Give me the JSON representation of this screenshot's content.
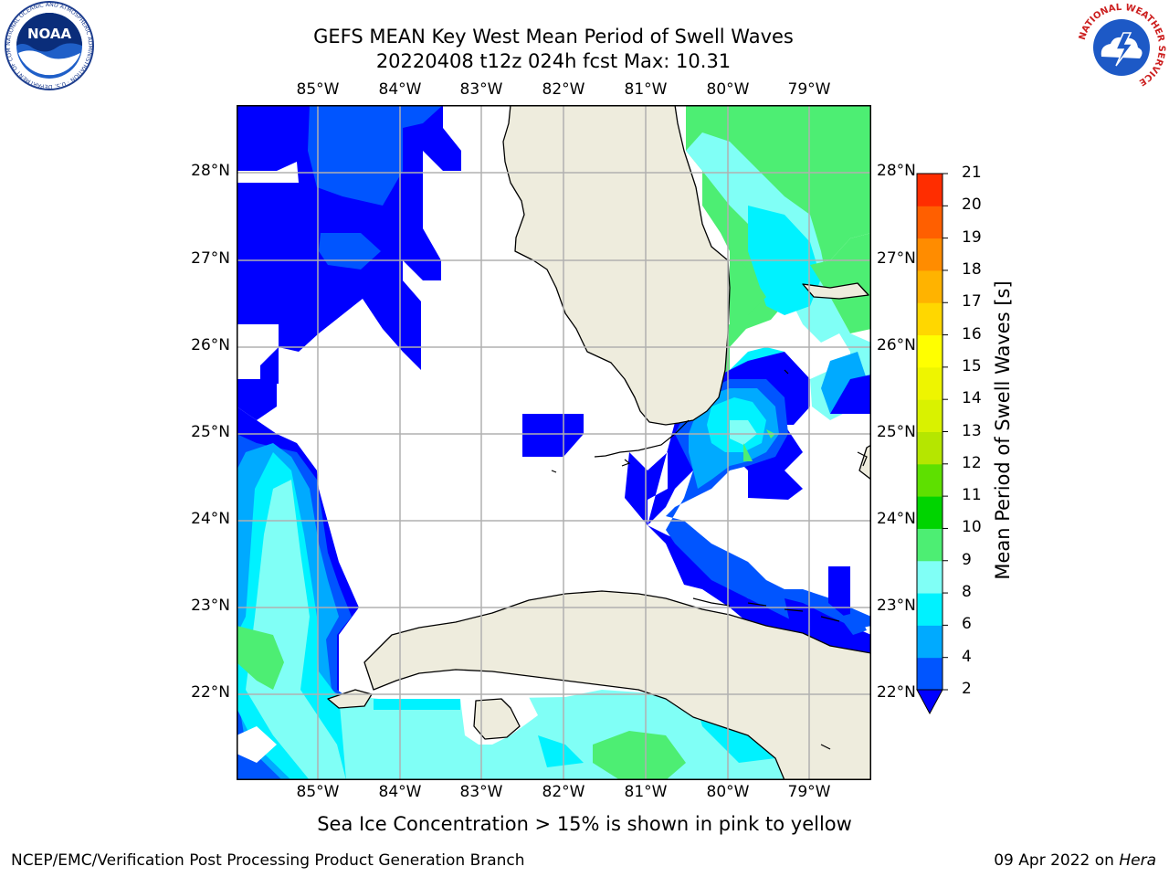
{
  "title": {
    "line1": "GEFS MEAN Key West Mean Period of Swell Waves",
    "line2": "20220408 t12z 024h fcst   Max: 10.31"
  },
  "map": {
    "lon_labels": [
      "85°W",
      "84°W",
      "83°W",
      "82°W",
      "81°W",
      "80°W",
      "79°W"
    ],
    "lat_labels": [
      "28°N",
      "27°N",
      "26°N",
      "25°N",
      "24°N",
      "23°N",
      "22°N"
    ],
    "extent": {
      "lon": [
        -86.0,
        -78.3
      ],
      "lat": [
        21.0,
        28.8
      ]
    }
  },
  "colorbar": {
    "label": "Mean Period of Swell Waves [s]",
    "ticks": [
      "2",
      "4",
      "6",
      "8",
      "9",
      "10",
      "11",
      "12",
      "13",
      "14",
      "15",
      "16",
      "17",
      "18",
      "19",
      "20",
      "21"
    ],
    "colors": [
      "#0055ff",
      "#00aaff",
      "#00f2ff",
      "#80fff6",
      "#4dee73",
      "#00d400",
      "#5ee000",
      "#b5e600",
      "#d9f200",
      "#eef500",
      "#ffff00",
      "#ffd700",
      "#ffb300",
      "#ff8c00",
      "#ff5f00",
      "#ff2d00"
    ],
    "under_color": "#0000ff"
  },
  "caption": "Sea Ice Concentration > 15% is shown in pink to yellow",
  "footer": {
    "left": "NCEP/EMC/Verification Post Processing Product Generation Branch",
    "date": "09 Apr 2022 on ",
    "machine": "Hera"
  },
  "logos": {
    "noaa_text": "NOAA",
    "noaa_ring": "NATIONAL OCEANIC AND ATMOSPHERIC ADMINISTRATION · U.S. DEPARTMENT OF COMMERCE",
    "nws_ring": "NATIONAL WEATHER SERVICE"
  }
}
